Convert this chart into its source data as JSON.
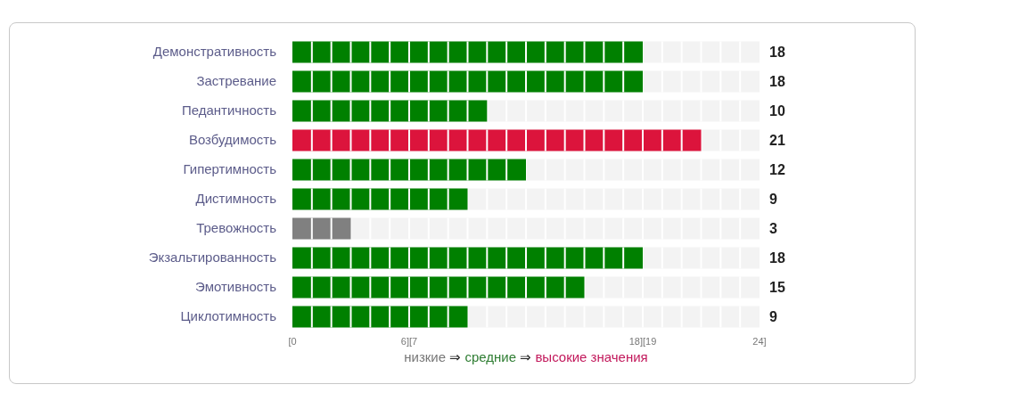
{
  "chart_data": {
    "type": "bar",
    "orientation": "horizontal",
    "categories": [
      "Демонстративность",
      "Застревание",
      "Педантичность",
      "Возбудимость",
      "Гипертимность",
      "Дистимность",
      "Тревожность",
      "Экзальтированность",
      "Эмотивность",
      "Циклотимность"
    ],
    "values": [
      18,
      18,
      10,
      21,
      12,
      9,
      3,
      18,
      15,
      9
    ],
    "colors": [
      "#008000",
      "#008000",
      "#008000",
      "#dc143c",
      "#008000",
      "#008000",
      "#808080",
      "#008000",
      "#008000",
      "#008000"
    ],
    "xlim": [
      0,
      24
    ],
    "xticks": [
      {
        "value": 0,
        "label": "[0"
      },
      {
        "value": 6,
        "label": "6][7"
      },
      {
        "value": 18,
        "label": "18][19"
      },
      {
        "value": 24,
        "label": "24]"
      }
    ],
    "grid": false,
    "legend": false,
    "annotations": [
      "18",
      "18",
      "10",
      "21",
      "12",
      "9",
      "3",
      "18",
      "15",
      "9",
      "низкие ⇒ средние ⇒ высокие значения"
    ]
  }
}
